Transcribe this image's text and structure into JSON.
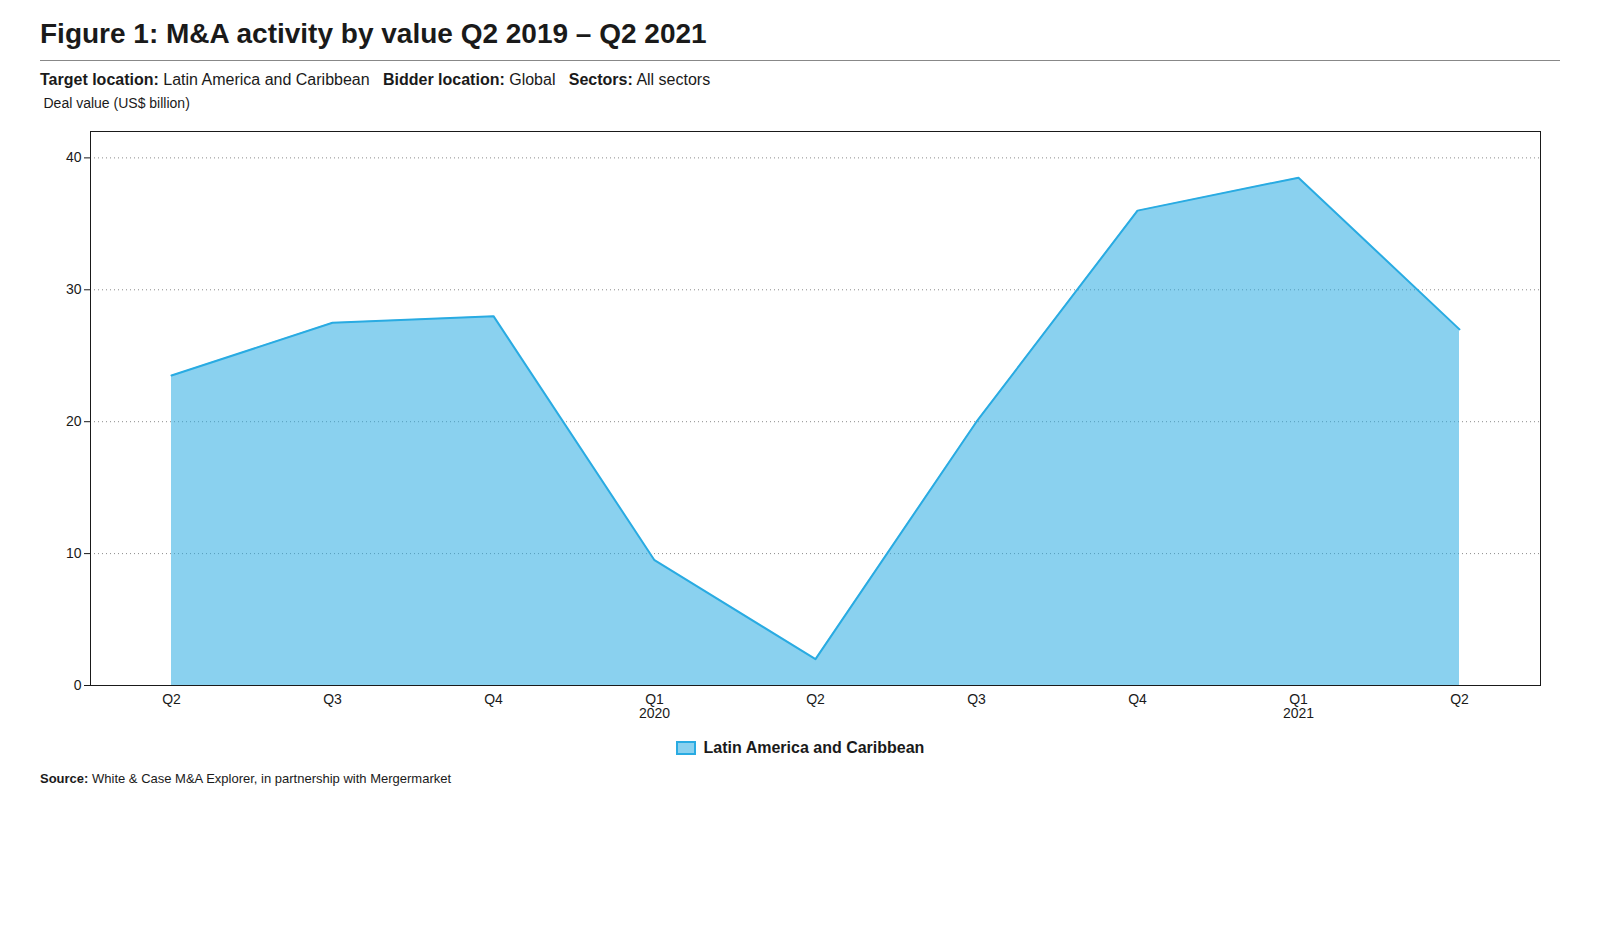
{
  "chart_data": {
    "type": "area",
    "title": "Figure 1: M&A activity by value Q2 2019 – Q2 2021",
    "subtitle": "Target location: Latin America and Caribbean   Bidder location: Global   Sectors: All sectors",
    "ylabel": "Deal value (US$ billion)",
    "categories": [
      "Q2",
      "Q3",
      "Q4",
      "Q1\n2020",
      "Q2",
      "Q3",
      "Q4",
      "Q1\n2021",
      "Q2"
    ],
    "series": [
      {
        "name": "Latin America and Caribbean",
        "color": "#29ABE2",
        "values": [
          23.5,
          27.5,
          28.0,
          9.5,
          2.0,
          20.0,
          36.0,
          38.5,
          27.0
        ]
      }
    ],
    "ylim": [
      0,
      42
    ],
    "yticks": [
      0,
      10,
      20,
      30,
      40
    ],
    "grid": true,
    "legend": "bottom",
    "annotations": [
      "Source: White & Case M&A Explorer, in partnership with Mergermarket"
    ]
  }
}
